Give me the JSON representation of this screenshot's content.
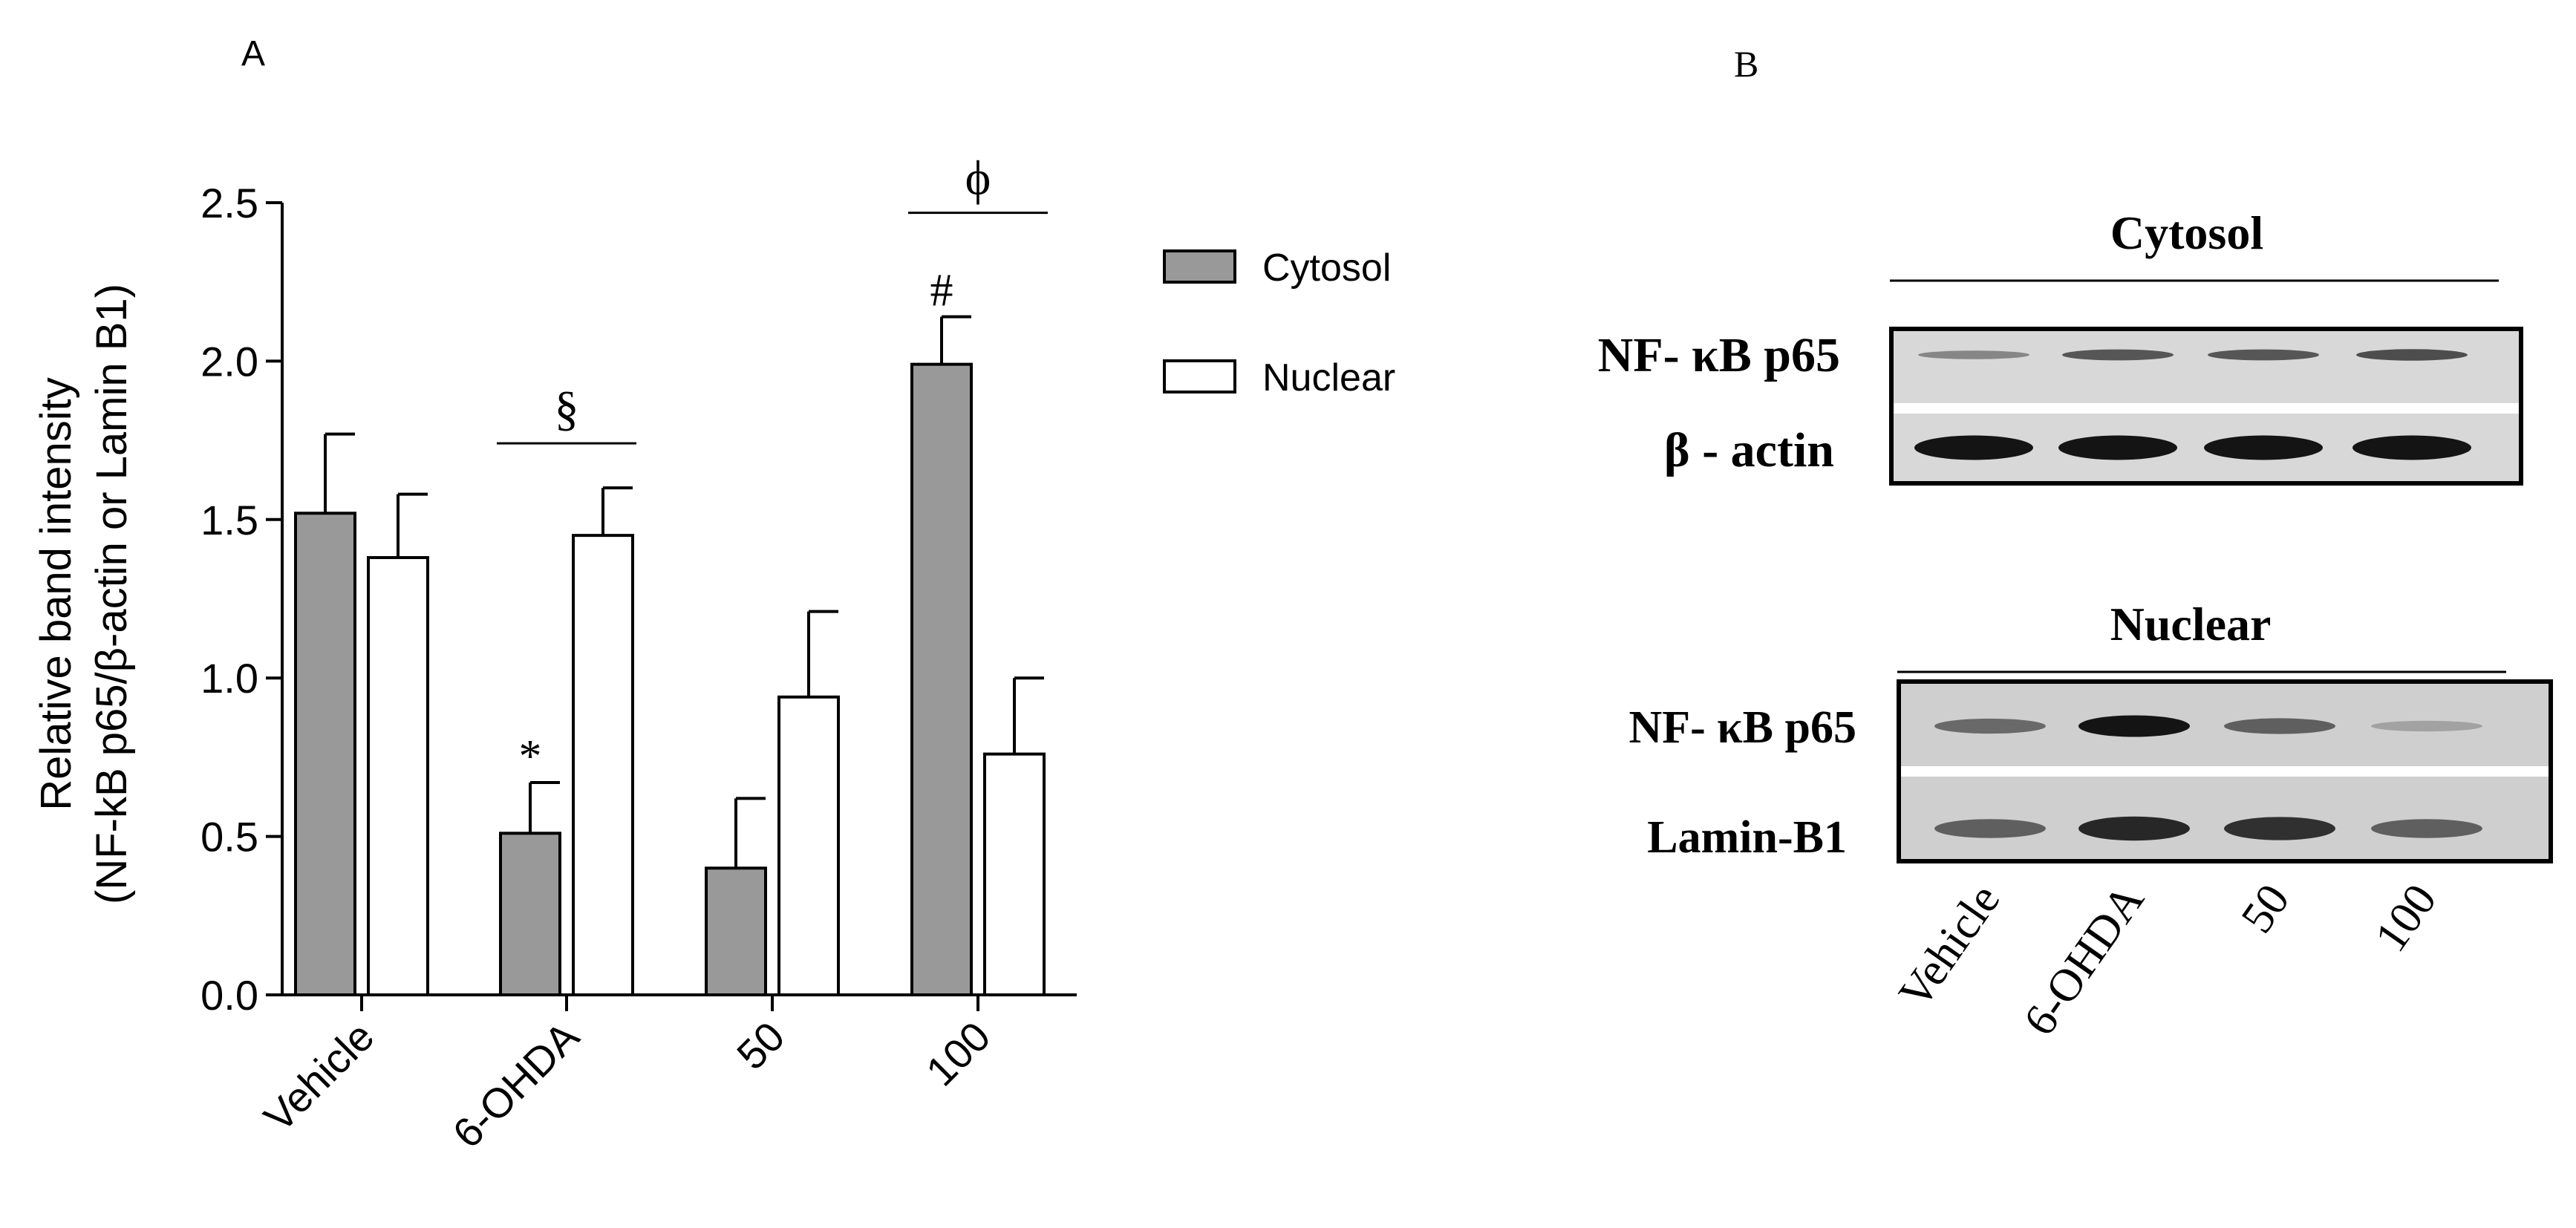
{
  "panel_a": {
    "label": "A",
    "y_axis_label_line1": "Relative band intensity",
    "y_axis_label_line2": "(NF-kB p65/β-actin or Lamin B1)"
  },
  "panel_b": {
    "label": "B",
    "cytosol_header": "Cytosol",
    "nuclear_header": "Nuclear",
    "row_labels": {
      "cyto_nfkb": "NF- κB p65",
      "cyto_actin": "β - actin",
      "nuc_nfkb": "NF- κB p65",
      "nuc_lamin": "Lamin-B1"
    },
    "lanes": [
      "Vehicle",
      "6-OHDA",
      "50",
      "100"
    ],
    "band_intensity": {
      "cyto_nfkb": [
        0.35,
        0.6,
        0.6,
        0.65
      ],
      "cyto_actin": [
        0.95,
        0.95,
        0.95,
        0.95
      ],
      "nuc_nfkb": [
        0.5,
        0.95,
        0.55,
        0.2
      ],
      "nuc_lamin": [
        0.55,
        0.85,
        0.8,
        0.55
      ]
    }
  },
  "chart_data": {
    "type": "bar",
    "categories": [
      "Vehicle",
      "6-OHDA",
      "50",
      "100"
    ],
    "series": [
      {
        "name": "Cytosol",
        "values": [
          1.52,
          0.51,
          0.4,
          1.99
        ],
        "errors": [
          0.25,
          0.16,
          0.22,
          0.15
        ],
        "color": "#999999"
      },
      {
        "name": "Nuclear",
        "values": [
          1.38,
          1.45,
          0.94,
          0.76
        ],
        "errors": [
          0.2,
          0.15,
          0.27,
          0.24
        ],
        "color": "#ffffff"
      }
    ],
    "ylim": [
      0,
      2.5
    ],
    "yticks": [
      "0.0",
      "0.5",
      "1.0",
      "1.5",
      "2.0",
      "2.5"
    ],
    "ytick_values": [
      0,
      0.5,
      1.0,
      1.5,
      2.0,
      2.5
    ],
    "legend_position": "right",
    "annotations": [
      {
        "text": "*",
        "category": 1,
        "series": 0
      },
      {
        "text": "#",
        "category": 3,
        "series": 0
      },
      {
        "text": "§",
        "category": 1,
        "type": "bracket"
      },
      {
        "text": "ϕ",
        "category": 3,
        "type": "bracket"
      }
    ]
  }
}
